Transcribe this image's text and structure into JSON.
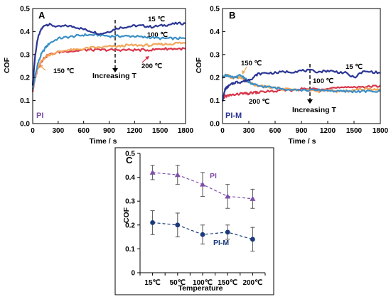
{
  "chart_data": [
    {
      "panel": "A",
      "type": "line",
      "xlabel": "Time / s",
      "ylabel": "COF",
      "xlim": [
        0,
        1800
      ],
      "ylim": [
        0,
        0.5
      ],
      "xticks": [
        "0",
        "300",
        "600",
        "900",
        "1200",
        "1500",
        "1800"
      ],
      "yticks": [
        "0.0",
        "0.1",
        "0.2",
        "0.3",
        "0.4",
        "0.5"
      ],
      "grid": false,
      "tag": "PI",
      "annotation": "Increasing T",
      "series": [
        {
          "name": "15 ℃",
          "color": "#2b3595",
          "x": [
            0,
            30,
            60,
            100,
            150,
            200,
            300,
            400,
            500,
            600,
            700,
            800,
            900,
            1000,
            1100,
            1200,
            1300,
            1400,
            1500,
            1600,
            1700,
            1800
          ],
          "y": [
            0.17,
            0.3,
            0.37,
            0.41,
            0.43,
            0.43,
            0.42,
            0.425,
            0.42,
            0.41,
            0.4,
            0.39,
            0.4,
            0.415,
            0.42,
            0.425,
            0.425,
            0.42,
            0.425,
            0.43,
            0.435,
            0.435
          ]
        },
        {
          "name": "100 ℃",
          "color": "#3b8fc6",
          "x": [
            0,
            30,
            60,
            100,
            150,
            200,
            300,
            400,
            500,
            600,
            700,
            800,
            900,
            1000,
            1100,
            1200,
            1300,
            1400,
            1500,
            1600,
            1700,
            1800
          ],
          "y": [
            0.15,
            0.21,
            0.26,
            0.3,
            0.33,
            0.35,
            0.37,
            0.375,
            0.38,
            0.385,
            0.385,
            0.385,
            0.38,
            0.38,
            0.38,
            0.38,
            0.375,
            0.375,
            0.37,
            0.37,
            0.37,
            0.37
          ]
        },
        {
          "name": "150 ℃",
          "color": "#f2a65a",
          "x": [
            0,
            30,
            60,
            100,
            150,
            200,
            300,
            400,
            500,
            600,
            700,
            800,
            900,
            1000,
            1100,
            1200,
            1300,
            1400,
            1500,
            1600,
            1700,
            1800
          ],
          "y": [
            0.15,
            0.2,
            0.24,
            0.27,
            0.29,
            0.3,
            0.31,
            0.32,
            0.32,
            0.325,
            0.33,
            0.33,
            0.335,
            0.335,
            0.34,
            0.34,
            0.34,
            0.34,
            0.345,
            0.345,
            0.35,
            0.35
          ]
        },
        {
          "name": "200 ℃",
          "color": "#d9364a",
          "x": [
            0,
            30,
            60,
            100,
            150,
            200,
            300,
            400,
            500,
            600,
            700,
            800,
            900,
            1000,
            1100,
            1200,
            1300,
            1400,
            1500,
            1600,
            1700,
            1800
          ],
          "y": [
            0.14,
            0.2,
            0.24,
            0.27,
            0.29,
            0.3,
            0.31,
            0.315,
            0.315,
            0.32,
            0.32,
            0.32,
            0.32,
            0.32,
            0.32,
            0.32,
            0.32,
            0.32,
            0.325,
            0.325,
            0.325,
            0.325
          ]
        }
      ]
    },
    {
      "panel": "B",
      "type": "line",
      "xlabel": "Time / s",
      "ylabel": "COF",
      "xlim": [
        0,
        1800
      ],
      "ylim": [
        0,
        0.5
      ],
      "xticks": [
        "0",
        "300",
        "600",
        "900",
        "1200",
        "1500",
        "1800"
      ],
      "yticks": [
        "0.0",
        "0.1",
        "0.2",
        "0.3",
        "0.4",
        "0.5"
      ],
      "grid": false,
      "tag": "PI-M",
      "annotation": "Increasing T",
      "series": [
        {
          "name": "15 ℃",
          "color": "#2b3595",
          "x": [
            0,
            30,
            60,
            100,
            150,
            200,
            250,
            300,
            350,
            400,
            500,
            600,
            700,
            800,
            900,
            1000,
            1100,
            1200,
            1300,
            1400,
            1500,
            1600,
            1700,
            1800
          ],
          "y": [
            0.1,
            0.15,
            0.16,
            0.17,
            0.18,
            0.18,
            0.185,
            0.19,
            0.2,
            0.215,
            0.22,
            0.22,
            0.225,
            0.225,
            0.23,
            0.23,
            0.225,
            0.23,
            0.225,
            0.22,
            0.2,
            0.225,
            0.225,
            0.22
          ]
        },
        {
          "name": "100 ℃",
          "color": "#3b8fc6",
          "x": [
            0,
            30,
            60,
            100,
            150,
            200,
            250,
            300,
            350,
            400,
            500,
            600,
            700,
            800,
            900,
            1000,
            1100,
            1200,
            1300,
            1400,
            1500,
            1600,
            1700,
            1800
          ],
          "y": [
            0.2,
            0.21,
            0.21,
            0.2,
            0.2,
            0.21,
            0.2,
            0.18,
            0.17,
            0.165,
            0.16,
            0.155,
            0.15,
            0.15,
            0.145,
            0.145,
            0.145,
            0.145,
            0.14,
            0.14,
            0.14,
            0.14,
            0.14,
            0.14
          ]
        },
        {
          "name": "150 ℃",
          "color": "#f2a65a",
          "x": [
            0,
            30,
            60,
            100,
            150,
            200,
            250,
            300,
            350,
            400,
            500,
            600,
            700,
            800,
            900,
            1000,
            1100,
            1200,
            1300,
            1400,
            1500,
            1600,
            1700,
            1800
          ],
          "y": [
            0.2,
            0.21,
            0.21,
            0.2,
            0.2,
            0.2,
            0.19,
            0.18,
            0.17,
            0.165,
            0.16,
            0.155,
            0.15,
            0.15,
            0.145,
            0.145,
            0.14,
            0.145,
            0.14,
            0.14,
            0.145,
            0.15,
            0.15,
            0.15
          ]
        },
        {
          "name": "200 ℃",
          "color": "#d9364a",
          "x": [
            0,
            30,
            60,
            100,
            150,
            200,
            250,
            300,
            350,
            400,
            500,
            600,
            700,
            800,
            900,
            1000,
            1100,
            1200,
            1300,
            1400,
            1500,
            1600,
            1700,
            1800
          ],
          "y": [
            0.1,
            0.12,
            0.12,
            0.125,
            0.125,
            0.13,
            0.13,
            0.13,
            0.135,
            0.135,
            0.14,
            0.14,
            0.145,
            0.145,
            0.15,
            0.15,
            0.15,
            0.155,
            0.155,
            0.155,
            0.16,
            0.16,
            0.16,
            0.165
          ]
        }
      ]
    },
    {
      "panel": "C",
      "type": "line",
      "xlabel": "Temperature",
      "ylabel": "COF",
      "categories": [
        "15℃",
        "50℃",
        "100℃",
        "150℃",
        "200℃"
      ],
      "ylim": [
        0,
        0.5
      ],
      "yticks": [
        "0",
        "0.1",
        "0.2",
        "0.3",
        "0.4",
        "0.5"
      ],
      "grid": false,
      "series": [
        {
          "name": "PI",
          "color": "#7d4fa8",
          "label_color": "#7d4fa8",
          "marker": "triangle",
          "style": "dashed",
          "values": [
            0.42,
            0.41,
            0.37,
            0.32,
            0.31
          ],
          "errors": [
            0.03,
            0.04,
            0.05,
            0.05,
            0.04
          ]
        },
        {
          "name": "PI-M",
          "color": "#1a3a7a",
          "label_color": "#1a3a7a",
          "marker": "circle",
          "style": "dashed",
          "values": [
            0.21,
            0.2,
            0.16,
            0.17,
            0.14
          ],
          "errors": [
            0.05,
            0.05,
            0.04,
            0.03,
            0.05
          ]
        }
      ]
    }
  ]
}
